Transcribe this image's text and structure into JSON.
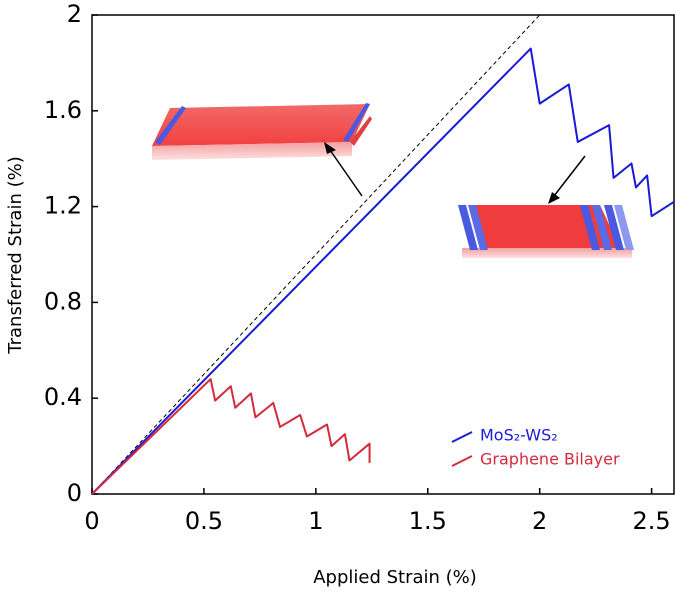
{
  "chart_data": {
    "type": "line",
    "xlabel": "Applied Strain (%)",
    "ylabel": "Transferred Strain (%)",
    "xlim": [
      0,
      2.6
    ],
    "xticks": [
      0,
      0.5,
      1,
      1.5,
      2,
      2.5
    ],
    "ylim": [
      0,
      2
    ],
    "yticks": [
      0,
      0.4,
      0.8,
      1.2,
      1.6,
      2
    ],
    "legend": "lower right",
    "series": [
      {
        "color": "#000000",
        "dash": true,
        "x": [
          0,
          2
        ],
        "values": [
          0,
          2
        ]
      },
      {
        "name": "MoS₂-WS₂",
        "color": "#1a1ad6",
        "x": [
          0,
          1.96,
          2.0,
          2.13,
          2.17,
          2.31,
          2.33,
          2.41,
          2.43,
          2.48,
          2.5,
          2.6
        ],
        "values": [
          0,
          1.86,
          1.63,
          1.71,
          1.47,
          1.54,
          1.32,
          1.38,
          1.28,
          1.33,
          1.16,
          1.22
        ]
      },
      {
        "name": "Graphene Bilayer",
        "color": "#d42a3c",
        "x": [
          0,
          0.53,
          0.55,
          0.62,
          0.64,
          0.71,
          0.73,
          0.81,
          0.84,
          0.93,
          0.96,
          1.05,
          1.07,
          1.13,
          1.15,
          1.24,
          1.24
        ],
        "values": [
          0,
          0.48,
          0.39,
          0.45,
          0.36,
          0.42,
          0.32,
          0.38,
          0.28,
          0.33,
          0.24,
          0.29,
          0.2,
          0.25,
          0.14,
          0.21,
          0.13
        ]
      }
    ]
  }
}
